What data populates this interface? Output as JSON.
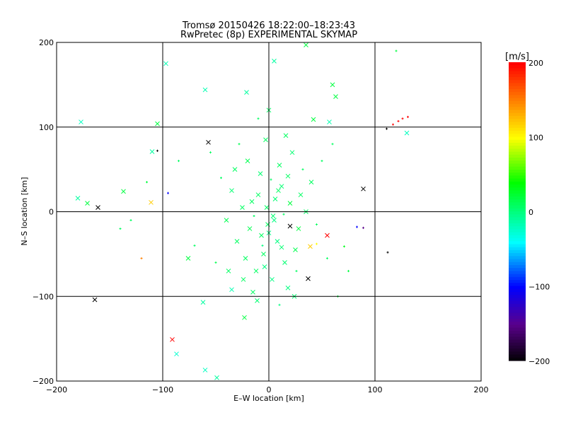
{
  "chart_data": {
    "type": "scatter",
    "title": "Tromsø 20150426 18:22:00–18:23:43",
    "subtitle": "RwPretec (8p) EXPERIMENTAL SKYMAP",
    "xlabel": "E–W location [km]",
    "ylabel": "N–S location [km]",
    "xlim": [
      -200,
      200
    ],
    "ylim": [
      -200,
      200
    ],
    "xticks": [
      -200,
      -100,
      0,
      100,
      200
    ],
    "yticks": [
      -200,
      -100,
      0,
      100,
      200
    ],
    "grid": true,
    "colorbar": {
      "label": "[m/s]",
      "range": [
        -200,
        200
      ],
      "ticks": [
        200,
        100,
        0,
        -100,
        -200
      ]
    },
    "points": [
      [
        -177,
        106,
        -20,
        "x"
      ],
      [
        -57,
        82,
        -200,
        "x"
      ],
      [
        -105,
        72,
        -200,
        "+"
      ],
      [
        -161,
        5,
        -200,
        "x"
      ],
      [
        -164,
        -104,
        -200,
        "x"
      ],
      [
        -91,
        -151,
        200,
        "x"
      ],
      [
        -87,
        -168,
        -25,
        "x"
      ],
      [
        -60,
        -187,
        -20,
        "x"
      ],
      [
        89,
        27,
        -200,
        "x"
      ],
      [
        112,
        -48,
        -200,
        "+"
      ],
      [
        37,
        -79,
        -200,
        "x"
      ],
      [
        55,
        -28,
        200,
        "x"
      ],
      [
        117,
        103,
        200,
        "+"
      ],
      [
        122,
        107,
        200,
        "+"
      ],
      [
        126,
        110,
        200,
        "+"
      ],
      [
        131,
        112,
        200,
        "+"
      ],
      [
        111,
        98,
        -200,
        "+"
      ],
      [
        130,
        93,
        -20,
        "x"
      ],
      [
        -111,
        11,
        120,
        "x"
      ],
      [
        -95,
        22,
        -100,
        "+"
      ],
      [
        -97,
        175,
        -15,
        "x"
      ],
      [
        -105,
        104,
        20,
        "x"
      ],
      [
        -60,
        144,
        -15,
        "x"
      ],
      [
        -110,
        71,
        -10,
        "x"
      ],
      [
        -137,
        24,
        20,
        "x"
      ],
      [
        -180,
        16,
        -10,
        "x"
      ],
      [
        -171,
        10,
        20,
        "x"
      ],
      [
        -76,
        -55,
        20,
        "x"
      ],
      [
        -35,
        -92,
        -15,
        "x"
      ],
      [
        -23,
        -125,
        20,
        "x"
      ],
      [
        -49,
        -196,
        -10,
        "x"
      ],
      [
        -62,
        -107,
        -10,
        "x"
      ],
      [
        71,
        -41,
        30,
        "+"
      ],
      [
        83,
        -18,
        -100,
        "+"
      ],
      [
        89,
        -19,
        -150,
        "+"
      ],
      [
        42,
        109,
        20,
        "x"
      ],
      [
        63,
        136,
        20,
        "x"
      ],
      [
        60,
        150,
        20,
        "x"
      ],
      [
        5,
        178,
        -10,
        "x"
      ],
      [
        35,
        197,
        20,
        "x"
      ],
      [
        57,
        106,
        -15,
        "x"
      ],
      [
        -21,
        141,
        -10,
        "x"
      ],
      [
        20,
        -17,
        -200,
        "x"
      ],
      [
        39,
        -41,
        120,
        "x"
      ],
      [
        45,
        -38,
        100,
        "+"
      ],
      [
        -120,
        -55,
        150,
        "+"
      ],
      [
        -130,
        -10,
        10,
        "+"
      ],
      [
        -140,
        -20,
        10,
        "+"
      ],
      [
        65,
        -100,
        20,
        "+"
      ],
      [
        75,
        -70,
        20,
        "+"
      ],
      [
        120,
        190,
        20,
        "+"
      ],
      [
        -115,
        35,
        20,
        "+"
      ],
      [
        -85,
        60,
        10,
        "+"
      ],
      [
        -70,
        -40,
        10,
        "+"
      ],
      [
        60,
        80,
        10,
        "+"
      ],
      [
        -2,
        5,
        10,
        "x"
      ],
      [
        5,
        -10,
        0,
        "x"
      ],
      [
        -10,
        20,
        10,
        "x"
      ],
      [
        12,
        30,
        5,
        "x"
      ],
      [
        -18,
        -20,
        15,
        "x"
      ],
      [
        20,
        10,
        20,
        "x"
      ],
      [
        -25,
        5,
        10,
        "x"
      ],
      [
        8,
        -35,
        0,
        "x"
      ],
      [
        -5,
        -50,
        10,
        "x"
      ],
      [
        15,
        -60,
        5,
        "x"
      ],
      [
        -12,
        -70,
        10,
        "x"
      ],
      [
        3,
        -80,
        0,
        "x"
      ],
      [
        25,
        -45,
        15,
        "x"
      ],
      [
        -30,
        -35,
        10,
        "x"
      ],
      [
        30,
        20,
        10,
        "x"
      ],
      [
        -8,
        45,
        5,
        "x"
      ],
      [
        10,
        55,
        10,
        "x"
      ],
      [
        -20,
        60,
        15,
        "x"
      ],
      [
        22,
        70,
        5,
        "x"
      ],
      [
        -3,
        85,
        10,
        "x"
      ],
      [
        18,
        -90,
        0,
        "x"
      ],
      [
        -15,
        -95,
        10,
        "x"
      ],
      [
        35,
        0,
        10,
        "x"
      ],
      [
        -35,
        25,
        5,
        "x"
      ],
      [
        0,
        -25,
        0,
        "x"
      ],
      [
        28,
        -20,
        20,
        "x"
      ],
      [
        -22,
        -55,
        10,
        "x"
      ],
      [
        40,
        35,
        10,
        "x"
      ],
      [
        -40,
        -10,
        15,
        "x"
      ],
      [
        6,
        15,
        5,
        "x"
      ],
      [
        -14,
        -5,
        10,
        "+"
      ],
      [
        14,
        -3,
        10,
        "+"
      ],
      [
        2,
        38,
        10,
        "+"
      ],
      [
        -6,
        -40,
        0,
        "+"
      ],
      [
        26,
        -70,
        10,
        "+"
      ],
      [
        -28,
        80,
        15,
        "+"
      ],
      [
        32,
        50,
        10,
        "+"
      ],
      [
        -45,
        40,
        10,
        "+"
      ],
      [
        45,
        -15,
        10,
        "+"
      ],
      [
        -50,
        -60,
        15,
        "+"
      ],
      [
        10,
        -110,
        0,
        "+"
      ],
      [
        -10,
        110,
        10,
        "+"
      ],
      [
        50,
        60,
        10,
        "+"
      ],
      [
        -55,
        70,
        10,
        "+"
      ],
      [
        55,
        -55,
        10,
        "+"
      ],
      [
        -1,
        -15,
        10,
        "x"
      ],
      [
        4,
        -5,
        5,
        "x"
      ],
      [
        -7,
        -28,
        10,
        "x"
      ],
      [
        12,
        -42,
        5,
        "x"
      ],
      [
        -16,
        12,
        10,
        "x"
      ],
      [
        18,
        42,
        10,
        "x"
      ],
      [
        -24,
        -80,
        10,
        "x"
      ],
      [
        24,
        -100,
        5,
        "x"
      ],
      [
        -32,
        50,
        10,
        "x"
      ],
      [
        0,
        120,
        10,
        "x"
      ],
      [
        -4,
        -65,
        0,
        "x"
      ],
      [
        9,
        25,
        10,
        "x"
      ],
      [
        -11,
        -105,
        5,
        "x"
      ],
      [
        16,
        90,
        10,
        "x"
      ],
      [
        -38,
        -70,
        10,
        "x"
      ]
    ]
  }
}
